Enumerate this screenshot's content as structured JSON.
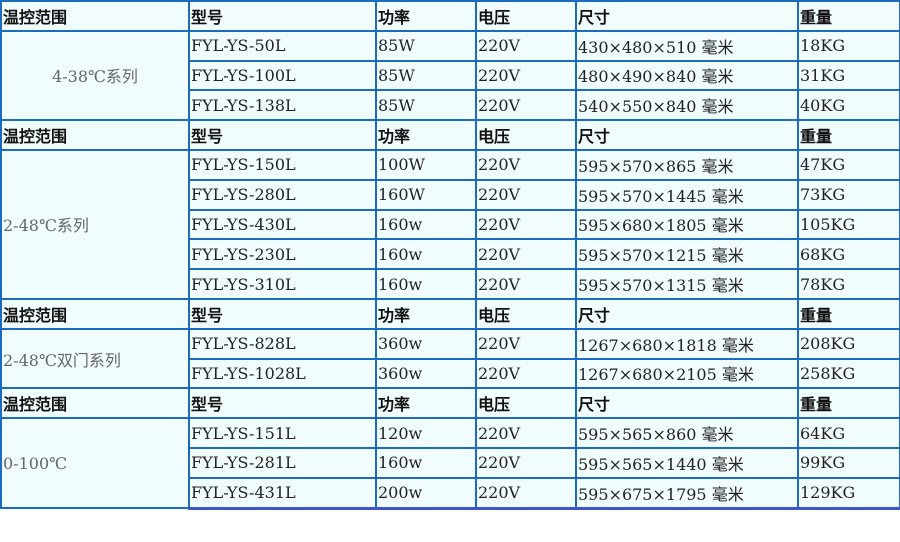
{
  "headers": [
    "温控范围",
    "型号",
    "功率",
    "电压",
    "尺寸",
    "重量"
  ],
  "colors": {
    "border": "#1b6cbf",
    "background": "#f0fcfd",
    "range_text": "#666666"
  },
  "groups": [
    {
      "range": "4-38℃系列",
      "rows": [
        [
          "FYL-YS-50L",
          "85W",
          "220V",
          "430×480×510 毫米",
          "18KG"
        ],
        [
          "FYL-YS-100L",
          "85W",
          "220V",
          "480×490×840 毫米",
          "31KG"
        ],
        [
          "FYL-YS-138L",
          "85W",
          "220V",
          "540×550×840 毫米",
          "40KG"
        ]
      ]
    },
    {
      "range": "2-48℃系列",
      "rows": [
        [
          "FYL-YS-150L",
          "100W",
          "220V",
          "595×570×865 毫米",
          "47KG"
        ],
        [
          "FYL-YS-280L",
          "160W",
          "220V",
          "595×570×1445 毫米",
          "73KG"
        ],
        [
          "FYL-YS-430L",
          "160w",
          "220V",
          "595×680×1805 毫米",
          "105KG"
        ],
        [
          "FYL-YS-230L",
          "160w",
          "220V",
          "595×570×1215 毫米",
          "68KG"
        ],
        [
          "FYL-YS-310L",
          "160w",
          "220V",
          "595×570×1315 毫米",
          "78KG"
        ]
      ]
    },
    {
      "range": "2-48℃双门系列",
      "rows": [
        [
          "FYL-YS-828L",
          "360w",
          "220V",
          "1267×680×1818 毫米",
          "208KG"
        ],
        [
          "FYL-YS-1028L",
          "360w",
          "220V",
          "1267×680×2105 毫米",
          "258KG"
        ]
      ]
    },
    {
      "range": "0-100℃",
      "rows": [
        [
          "FYL-YS-151L",
          "120w",
          "220V",
          "595×565×860 毫米",
          "64KG"
        ],
        [
          "FYL-YS-281L",
          "160w",
          "220V",
          "595×565×1440 毫米",
          "99KG"
        ],
        [
          "FYL-YS-431L",
          "200w",
          "220V",
          "595×675×1795 毫米",
          "129KG"
        ]
      ]
    }
  ]
}
